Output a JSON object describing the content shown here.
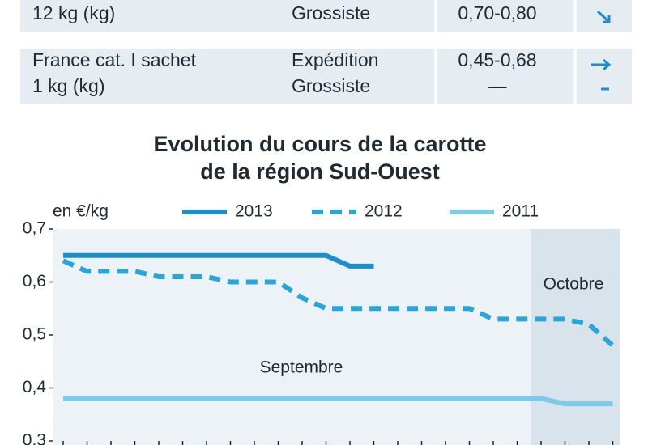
{
  "table": {
    "rows": [
      [
        [
          "12 kg (kg)"
        ],
        [
          "Grossiste"
        ],
        [
          "0,70-0,80"
        ]
      ],
      [
        [
          "France cat. I sachet",
          "1 kg (kg)"
        ],
        [
          "Expédition",
          "Grossiste"
        ],
        [
          "0,45-0,68",
          "—"
        ]
      ]
    ]
  },
  "chart_data": {
    "type": "line",
    "title": "Evolution du cours de la carotte",
    "subtitle": "de la région Sud-Ouest",
    "y_label": "en €/kg",
    "annotations": [
      "Septembre",
      "Octobre"
    ],
    "categories": [
      null,
      null,
      null,
      null,
      null,
      null,
      null,
      null,
      null,
      null,
      null,
      null,
      null,
      null,
      null,
      null,
      null,
      null,
      null,
      null,
      null,
      null,
      null,
      null
    ],
    "series": [
      {
        "name": "2013",
        "color": "#1a8fd0",
        "style": "solid",
        "values": [
          0.65,
          0.65,
          0.65,
          0.65,
          0.65,
          0.65,
          0.65,
          0.65,
          0.65,
          0.65,
          0.65,
          0.65,
          0.63,
          0.63,
          null,
          null,
          null,
          null,
          null,
          null,
          null,
          null,
          null,
          null
        ]
      },
      {
        "name": "2012",
        "color": "#27a6dc",
        "style": "dashed",
        "values": [
          0.64,
          0.62,
          0.62,
          0.62,
          0.61,
          0.61,
          0.61,
          0.6,
          0.6,
          0.6,
          0.57,
          0.55,
          0.55,
          0.55,
          0.55,
          0.55,
          0.55,
          0.55,
          0.53,
          0.53,
          0.53,
          0.53,
          0.52,
          0.48
        ]
      },
      {
        "name": "2011",
        "color": "#7ccbea",
        "style": "solid",
        "values": [
          0.38,
          0.38,
          0.38,
          0.38,
          0.38,
          0.38,
          0.38,
          0.38,
          0.38,
          0.38,
          0.38,
          0.38,
          0.38,
          0.38,
          0.38,
          0.38,
          0.38,
          0.38,
          0.38,
          0.38,
          0.38,
          0.37,
          0.37,
          0.37
        ]
      }
    ],
    "ylim": [
      0.3,
      0.7
    ],
    "yticks": [
      {
        "value": 0.3,
        "label": "0,3"
      },
      {
        "value": 0.4,
        "label": "0,4"
      },
      {
        "value": 0.5,
        "label": "0,5"
      },
      {
        "value": 0.6,
        "label": "0,6"
      },
      {
        "value": 0.7,
        "label": "0,7"
      }
    ],
    "grid": false
  }
}
